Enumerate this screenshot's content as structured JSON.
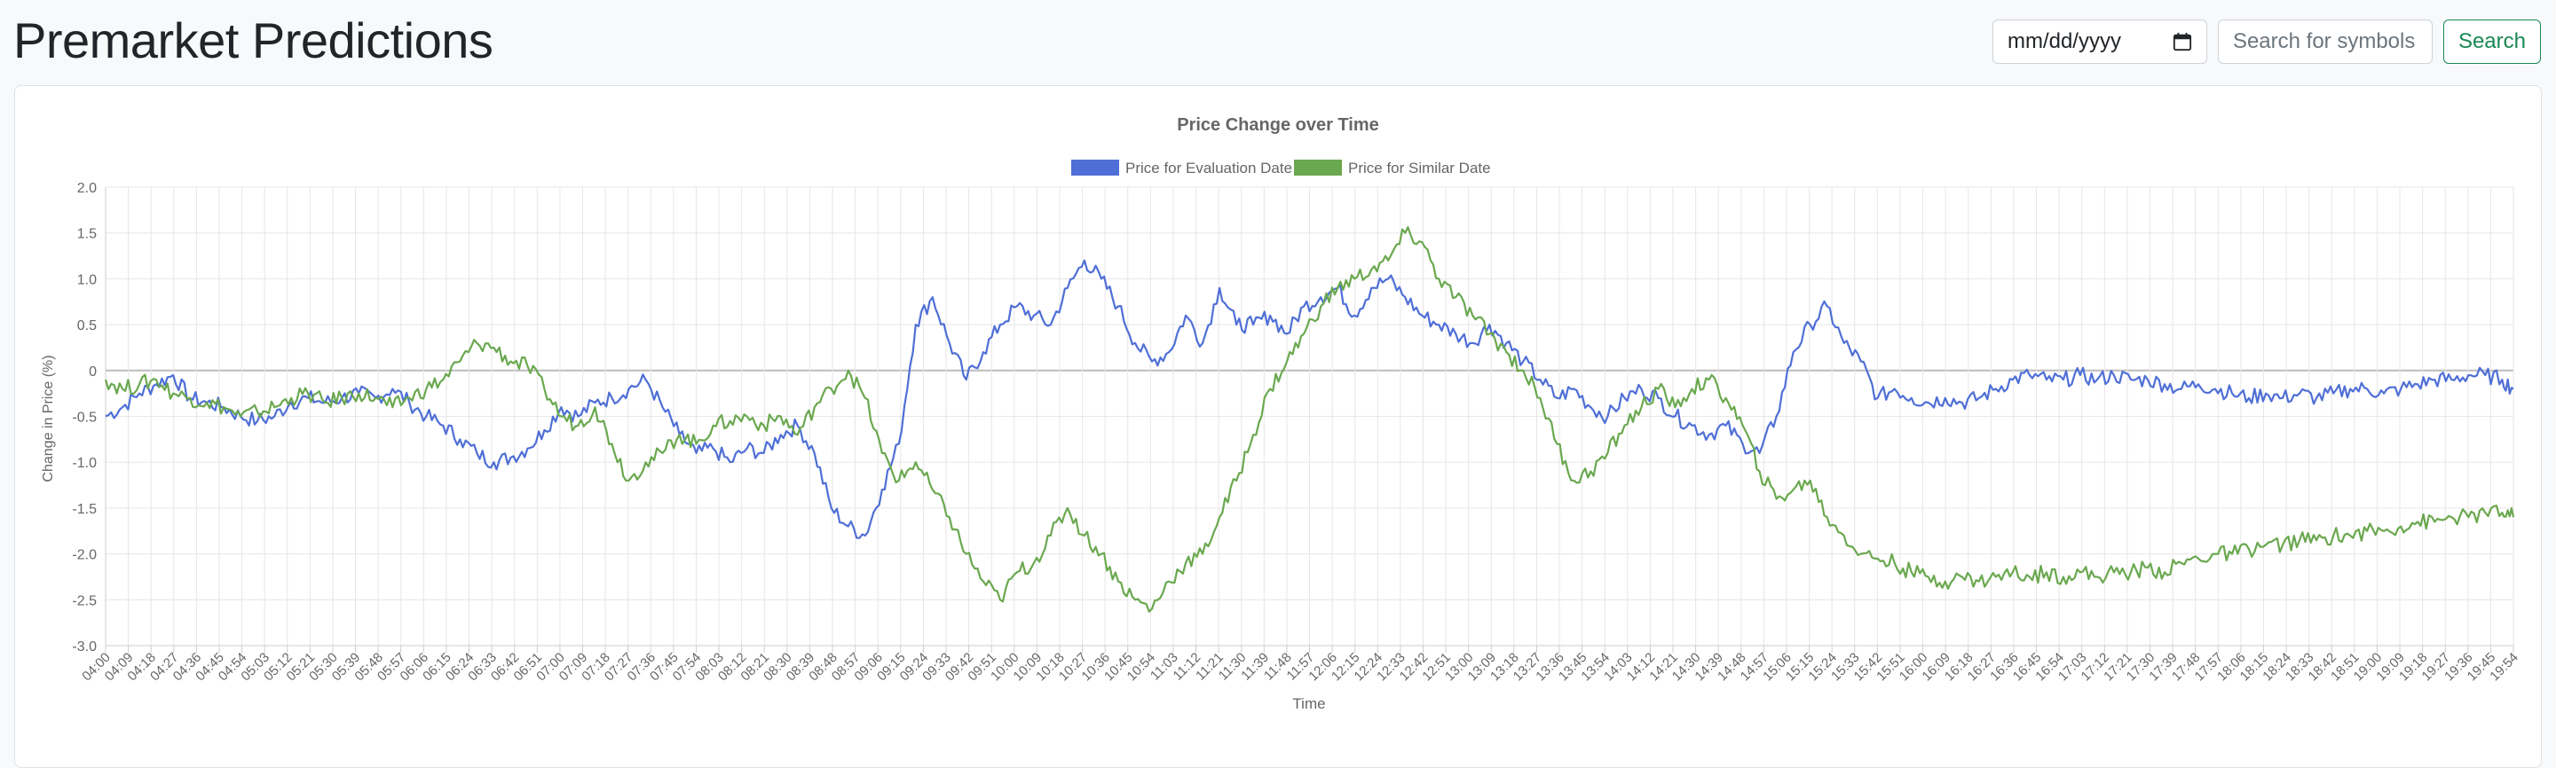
{
  "page": {
    "title": "Premarket Predictions",
    "date_placeholder": "mm/dd/yyyy",
    "search_placeholder": "Search for symbols",
    "search_button": "Search"
  },
  "chart_data": {
    "type": "line",
    "title": "Price Change over Time",
    "xlabel": "Time",
    "ylabel": "Change in Price (%)",
    "ylim": [
      -3.0,
      2.0
    ],
    "yticks": [
      "2.0",
      "1.5",
      "1.0",
      "0.5",
      "0",
      "-0.5",
      "-1.0",
      "-1.5",
      "-2.0",
      "-2.5",
      "-3.0"
    ],
    "grid": true,
    "legend_position": "top",
    "x_tick_labels": [
      "04:00",
      "04:09",
      "04:18",
      "04:27",
      "04:36",
      "04:45",
      "04:54",
      "05:03",
      "05:12",
      "05:21",
      "05:30",
      "05:39",
      "05:48",
      "05:57",
      "06:06",
      "06:15",
      "06:24",
      "06:33",
      "06:42",
      "06:51",
      "07:00",
      "07:09",
      "07:18",
      "07:27",
      "07:36",
      "07:45",
      "07:54",
      "08:03",
      "08:12",
      "08:21",
      "08:30",
      "08:39",
      "08:48",
      "08:57",
      "09:06",
      "09:15",
      "09:24",
      "09:33",
      "09:42",
      "09:51",
      "10:00",
      "10:09",
      "10:18",
      "10:27",
      "10:36",
      "10:45",
      "10:54",
      "11:03",
      "11:12",
      "11:21",
      "11:30",
      "11:39",
      "11:48",
      "11:57",
      "12:06",
      "12:15",
      "12:24",
      "12:33",
      "12:42",
      "12:51",
      "13:00",
      "13:09",
      "13:18",
      "13:27",
      "13:36",
      "13:45",
      "13:54",
      "14:03",
      "14:12",
      "14:21",
      "14:30",
      "14:39",
      "14:48",
      "14:57",
      "15:06",
      "15:15",
      "15:24",
      "15:33",
      "15:42",
      "15:51",
      "16:00",
      "16:09",
      "16:18",
      "16:27",
      "16:36",
      "16:45",
      "16:54",
      "17:03",
      "17:12",
      "17:21",
      "17:30",
      "17:39",
      "17:48",
      "17:57",
      "18:06",
      "18:15",
      "18:24",
      "18:33",
      "18:42",
      "18:51",
      "19:00",
      "19:09",
      "19:18",
      "19:27",
      "19:36",
      "19:45",
      "19:54"
    ],
    "series": [
      {
        "name": "Price for Evaluation Date",
        "color": "#4f6fd6",
        "points": [
          [
            0,
            -0.5
          ],
          [
            9,
            -0.4
          ],
          [
            18,
            -0.25
          ],
          [
            27,
            -0.15
          ],
          [
            36,
            -0.05
          ],
          [
            45,
            -0.3
          ],
          [
            54,
            -0.35
          ],
          [
            63,
            -0.4
          ],
          [
            72,
            -0.5
          ],
          [
            81,
            -0.55
          ],
          [
            90,
            -0.5
          ],
          [
            99,
            -0.35
          ],
          [
            108,
            -0.3
          ],
          [
            117,
            -0.35
          ],
          [
            126,
            -0.3
          ],
          [
            135,
            -0.25
          ],
          [
            144,
            -0.3
          ],
          [
            153,
            -0.2
          ],
          [
            162,
            -0.35
          ],
          [
            171,
            -0.5
          ],
          [
            180,
            -0.6
          ],
          [
            189,
            -0.75
          ],
          [
            198,
            -0.9
          ],
          [
            207,
            -1.0
          ],
          [
            216,
            -0.95
          ],
          [
            225,
            -0.85
          ],
          [
            234,
            -0.65
          ],
          [
            243,
            -0.4
          ],
          [
            252,
            -0.5
          ],
          [
            261,
            -0.35
          ],
          [
            270,
            -0.3
          ],
          [
            279,
            -0.2
          ],
          [
            288,
            -0.1
          ],
          [
            297,
            -0.4
          ],
          [
            306,
            -0.7
          ],
          [
            315,
            -0.9
          ],
          [
            324,
            -0.85
          ],
          [
            333,
            -1.0
          ],
          [
            342,
            -0.85
          ],
          [
            351,
            -0.9
          ],
          [
            360,
            -0.7
          ],
          [
            369,
            -0.6
          ],
          [
            378,
            -0.9
          ],
          [
            387,
            -1.5
          ],
          [
            396,
            -1.7
          ],
          [
            405,
            -1.8
          ],
          [
            414,
            -1.3
          ],
          [
            423,
            -0.8
          ],
          [
            432,
            0.5
          ],
          [
            441,
            0.8
          ],
          [
            450,
            0.3
          ],
          [
            459,
            -0.1
          ],
          [
            468,
            0.2
          ],
          [
            477,
            0.5
          ],
          [
            486,
            0.7
          ],
          [
            495,
            0.6
          ],
          [
            504,
            0.5
          ],
          [
            513,
            0.9
          ],
          [
            522,
            1.2
          ],
          [
            531,
            1.0
          ],
          [
            540,
            0.7
          ],
          [
            549,
            0.3
          ],
          [
            558,
            0.1
          ],
          [
            567,
            0.2
          ],
          [
            576,
            0.6
          ],
          [
            585,
            0.3
          ],
          [
            594,
            0.9
          ],
          [
            603,
            0.5
          ],
          [
            612,
            0.5
          ],
          [
            621,
            0.6
          ],
          [
            630,
            0.4
          ],
          [
            639,
            0.7
          ],
          [
            648,
            0.8
          ],
          [
            657,
            0.9
          ],
          [
            666,
            0.6
          ],
          [
            675,
            0.9
          ],
          [
            684,
            1.0
          ],
          [
            693,
            0.8
          ],
          [
            702,
            0.6
          ],
          [
            711,
            0.5
          ],
          [
            720,
            0.4
          ],
          [
            729,
            0.3
          ],
          [
            738,
            0.5
          ],
          [
            747,
            0.3
          ],
          [
            756,
            0.1
          ],
          [
            765,
            -0.1
          ],
          [
            774,
            -0.3
          ],
          [
            783,
            -0.2
          ],
          [
            792,
            -0.4
          ],
          [
            801,
            -0.5
          ],
          [
            810,
            -0.3
          ],
          [
            819,
            -0.2
          ],
          [
            828,
            -0.3
          ],
          [
            837,
            -0.5
          ],
          [
            846,
            -0.6
          ],
          [
            855,
            -0.7
          ],
          [
            864,
            -0.6
          ],
          [
            873,
            -0.8
          ],
          [
            882,
            -0.9
          ],
          [
            891,
            -0.5
          ],
          [
            900,
            0.2
          ],
          [
            909,
            0.5
          ],
          [
            918,
            0.7
          ],
          [
            927,
            0.3
          ],
          [
            936,
            0.1
          ],
          [
            945,
            -0.3
          ],
          [
            954,
            -0.2
          ],
          [
            963,
            -0.3
          ],
          [
            972,
            -0.35
          ],
          [
            981,
            -0.3
          ],
          [
            990,
            -0.35
          ],
          [
            999,
            -0.3
          ],
          [
            1008,
            -0.2
          ],
          [
            1017,
            -0.1
          ],
          [
            1026,
            -0.05
          ],
          [
            1035,
            -0.1
          ],
          [
            1044,
            -0.1
          ],
          [
            1053,
            -0.05
          ],
          [
            1062,
            -0.1
          ],
          [
            1071,
            -0.05
          ],
          [
            1080,
            -0.1
          ],
          [
            1089,
            -0.1
          ],
          [
            1098,
            -0.15
          ],
          [
            1107,
            -0.2
          ],
          [
            1116,
            -0.15
          ],
          [
            1125,
            -0.2
          ],
          [
            1134,
            -0.25
          ],
          [
            1143,
            -0.3
          ],
          [
            1152,
            -0.25
          ],
          [
            1161,
            -0.3
          ],
          [
            1170,
            -0.25
          ],
          [
            1179,
            -0.3
          ],
          [
            1188,
            -0.25
          ],
          [
            1197,
            -0.2
          ],
          [
            1206,
            -0.2
          ],
          [
            1215,
            -0.25
          ],
          [
            1224,
            -0.2
          ],
          [
            1233,
            -0.15
          ],
          [
            1242,
            -0.1
          ],
          [
            1251,
            -0.1
          ],
          [
            1260,
            -0.05
          ],
          [
            1269,
            -0.05
          ],
          [
            1278,
            -0.1
          ],
          [
            1284,
            -0.2
          ]
        ]
      },
      {
        "name": "Price for Similar Date",
        "color": "#6aa84f",
        "points": [
          [
            0,
            -0.1
          ],
          [
            9,
            -0.2
          ],
          [
            18,
            -0.15
          ],
          [
            27,
            -0.1
          ],
          [
            36,
            -0.25
          ],
          [
            45,
            -0.3
          ],
          [
            54,
            -0.35
          ],
          [
            63,
            -0.4
          ],
          [
            72,
            -0.5
          ],
          [
            81,
            -0.45
          ],
          [
            90,
            -0.4
          ],
          [
            99,
            -0.3
          ],
          [
            108,
            -0.25
          ],
          [
            117,
            -0.35
          ],
          [
            126,
            -0.3
          ],
          [
            135,
            -0.25
          ],
          [
            144,
            -0.3
          ],
          [
            153,
            -0.4
          ],
          [
            162,
            -0.3
          ],
          [
            171,
            -0.2
          ],
          [
            180,
            -0.1
          ],
          [
            189,
            0.1
          ],
          [
            198,
            0.3
          ],
          [
            207,
            0.25
          ],
          [
            216,
            0.1
          ],
          [
            225,
            0.05
          ],
          [
            234,
            -0.2
          ],
          [
            243,
            -0.5
          ],
          [
            252,
            -0.6
          ],
          [
            261,
            -0.4
          ],
          [
            270,
            -0.8
          ],
          [
            279,
            -1.2
          ],
          [
            288,
            -1.0
          ],
          [
            297,
            -0.9
          ],
          [
            306,
            -0.7
          ],
          [
            315,
            -0.8
          ],
          [
            324,
            -0.6
          ],
          [
            333,
            -0.55
          ],
          [
            342,
            -0.5
          ],
          [
            351,
            -0.6
          ],
          [
            360,
            -0.5
          ],
          [
            369,
            -0.7
          ],
          [
            378,
            -0.4
          ],
          [
            387,
            -0.2
          ],
          [
            396,
            0.0
          ],
          [
            405,
            -0.3
          ],
          [
            414,
            -0.9
          ],
          [
            423,
            -1.2
          ],
          [
            432,
            -1.0
          ],
          [
            441,
            -1.3
          ],
          [
            450,
            -1.6
          ],
          [
            459,
            -2.0
          ],
          [
            468,
            -2.3
          ],
          [
            477,
            -2.5
          ],
          [
            486,
            -2.2
          ],
          [
            495,
            -2.1
          ],
          [
            504,
            -1.8
          ],
          [
            513,
            -1.5
          ],
          [
            522,
            -1.8
          ],
          [
            531,
            -2.0
          ],
          [
            540,
            -2.3
          ],
          [
            549,
            -2.5
          ],
          [
            558,
            -2.6
          ],
          [
            567,
            -2.3
          ],
          [
            576,
            -2.1
          ],
          [
            585,
            -2.0
          ],
          [
            594,
            -1.6
          ],
          [
            603,
            -1.2
          ],
          [
            612,
            -0.7
          ],
          [
            621,
            -0.2
          ],
          [
            630,
            0.1
          ],
          [
            639,
            0.4
          ],
          [
            648,
            0.7
          ],
          [
            657,
            0.9
          ],
          [
            666,
            1.0
          ],
          [
            675,
            1.1
          ],
          [
            684,
            1.2
          ],
          [
            693,
            1.5
          ],
          [
            702,
            1.4
          ],
          [
            711,
            1.0
          ],
          [
            720,
            0.8
          ],
          [
            729,
            0.6
          ],
          [
            738,
            0.4
          ],
          [
            747,
            0.2
          ],
          [
            756,
            0.0
          ],
          [
            765,
            -0.3
          ],
          [
            774,
            -0.8
          ],
          [
            783,
            -1.2
          ],
          [
            792,
            -1.1
          ],
          [
            801,
            -0.9
          ],
          [
            810,
            -0.6
          ],
          [
            819,
            -0.4
          ],
          [
            828,
            -0.2
          ],
          [
            837,
            -0.4
          ],
          [
            846,
            -0.2
          ],
          [
            855,
            -0.1
          ],
          [
            864,
            -0.3
          ],
          [
            873,
            -0.6
          ],
          [
            882,
            -1.1
          ],
          [
            891,
            -1.4
          ],
          [
            900,
            -1.3
          ],
          [
            909,
            -1.2
          ],
          [
            918,
            -1.6
          ],
          [
            927,
            -1.8
          ],
          [
            936,
            -2.0
          ],
          [
            945,
            -2.05
          ],
          [
            954,
            -2.1
          ],
          [
            963,
            -2.2
          ],
          [
            972,
            -2.25
          ],
          [
            981,
            -2.3
          ],
          [
            990,
            -2.25
          ],
          [
            999,
            -2.3
          ],
          [
            1008,
            -2.25
          ],
          [
            1017,
            -2.2
          ],
          [
            1026,
            -2.25
          ],
          [
            1035,
            -2.2
          ],
          [
            1044,
            -2.25
          ],
          [
            1053,
            -2.2
          ],
          [
            1062,
            -2.25
          ],
          [
            1071,
            -2.2
          ],
          [
            1080,
            -2.2
          ],
          [
            1089,
            -2.15
          ],
          [
            1098,
            -2.2
          ],
          [
            1107,
            -2.1
          ],
          [
            1116,
            -2.05
          ],
          [
            1125,
            -2.0
          ],
          [
            1134,
            -2.0
          ],
          [
            1143,
            -1.95
          ],
          [
            1152,
            -1.9
          ],
          [
            1161,
            -1.9
          ],
          [
            1170,
            -1.85
          ],
          [
            1179,
            -1.85
          ],
          [
            1188,
            -1.8
          ],
          [
            1197,
            -1.8
          ],
          [
            1206,
            -1.75
          ],
          [
            1215,
            -1.75
          ],
          [
            1224,
            -1.7
          ],
          [
            1233,
            -1.65
          ],
          [
            1242,
            -1.65
          ],
          [
            1251,
            -1.6
          ],
          [
            1260,
            -1.6
          ],
          [
            1269,
            -1.55
          ],
          [
            1278,
            -1.55
          ],
          [
            1284,
            -1.6
          ]
        ]
      }
    ]
  }
}
